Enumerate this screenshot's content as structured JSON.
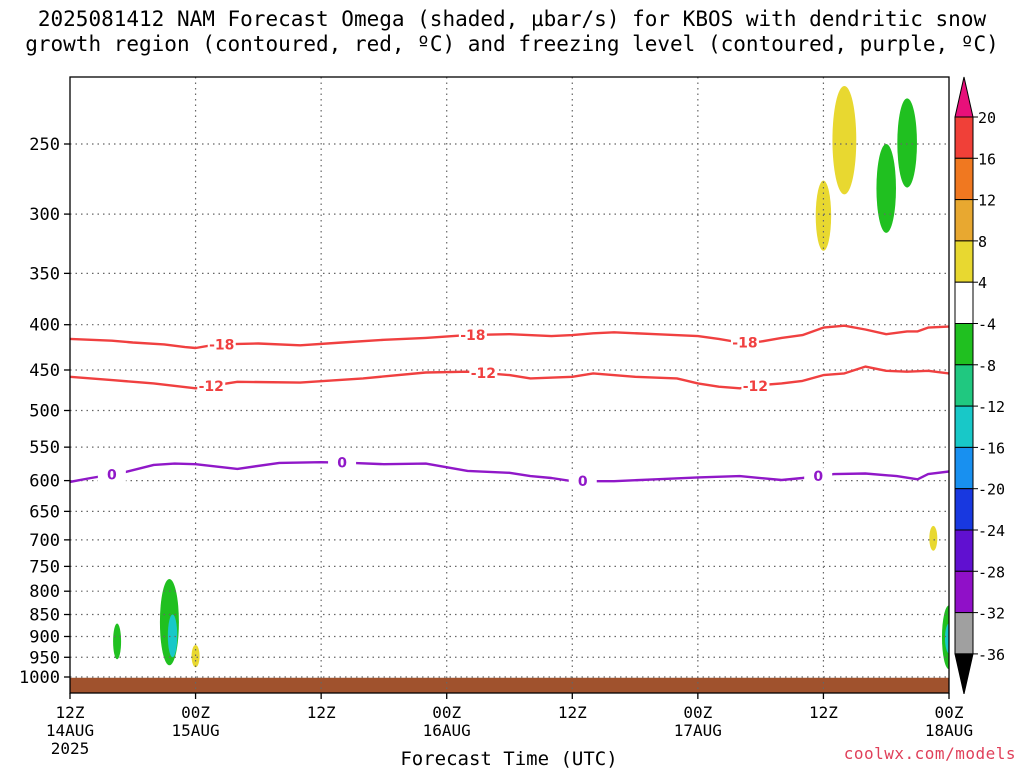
{
  "title": {
    "line1": "2025081412 NAM Forecast Omega (shaded, µbar/s) for KBOS with dendritic snow",
    "line2": "growth region (contoured, red, ºC) and freezing level (contoured, purple, ºC)"
  },
  "credit": "coolwx.com/models",
  "chart_data": {
    "type": "heatmap",
    "title": "2025081412 NAM Forecast Omega (shaded, µbar/s) for KBOS with dendritic snow growth region (contoured, red, ºC) and freezing level (contoured, purple, ºC)",
    "xlabel": "Forecast Time (UTC)",
    "ylabel": "",
    "x_unit": "forecast hour from 2025-08-14 12Z",
    "xlim": [
      0,
      84
    ],
    "ylim": [
      1025,
      200
    ],
    "y_scale": "log-pressure (hPa), inverted",
    "grid": true,
    "x_ticks": [
      {
        "hour": 0,
        "line1": "12Z",
        "line2": "14AUG",
        "line3": "2025"
      },
      {
        "hour": 12,
        "line1": "00Z",
        "line2": "15AUG",
        "line3": ""
      },
      {
        "hour": 24,
        "line1": "12Z",
        "line2": "",
        "line3": ""
      },
      {
        "hour": 36,
        "line1": "00Z",
        "line2": "16AUG",
        "line3": ""
      },
      {
        "hour": 48,
        "line1": "12Z",
        "line2": "",
        "line3": ""
      },
      {
        "hour": 60,
        "line1": "00Z",
        "line2": "17AUG",
        "line3": ""
      },
      {
        "hour": 72,
        "line1": "12Z",
        "line2": "",
        "line3": ""
      },
      {
        "hour": 84,
        "line1": "00Z",
        "line2": "18AUG",
        "line3": ""
      }
    ],
    "y_ticks": [
      250,
      300,
      350,
      400,
      450,
      500,
      550,
      600,
      650,
      700,
      750,
      800,
      850,
      900,
      950,
      1000
    ],
    "colorbar": {
      "labels": [
        "20",
        "16",
        "12",
        "8",
        "4",
        "-4",
        "-8",
        "-12",
        "-16",
        "-20",
        "-24",
        "-28",
        "-32",
        "-36"
      ],
      "colors": [
        "#e8107a",
        "#f04038",
        "#f07820",
        "#e8a830",
        "#e8d830",
        "#ffffff",
        "#20c020",
        "#20c880",
        "#18c8c8",
        "#1890f0",
        "#1838e0",
        "#6010d0",
        "#9010c8",
        "#a0a0a0",
        "#000000"
      ]
    },
    "contours": [
      {
        "name": "-18",
        "color": "#f04040",
        "label": "-18",
        "points": [
          [
            0,
            415
          ],
          [
            4,
            417
          ],
          [
            6,
            419
          ],
          [
            9,
            421
          ],
          [
            11,
            424
          ],
          [
            12,
            425
          ],
          [
            14,
            421
          ],
          [
            18,
            420
          ],
          [
            22,
            422
          ],
          [
            26,
            419
          ],
          [
            30,
            416
          ],
          [
            34,
            414
          ],
          [
            38,
            411
          ],
          [
            42,
            410
          ],
          [
            46,
            412
          ],
          [
            48,
            411
          ],
          [
            50,
            409
          ],
          [
            52,
            408
          ],
          [
            56,
            410
          ],
          [
            60,
            412
          ],
          [
            62,
            415
          ],
          [
            64,
            419
          ],
          [
            66,
            418
          ],
          [
            68,
            414
          ],
          [
            70,
            411
          ],
          [
            72,
            403
          ],
          [
            74,
            401
          ],
          [
            76,
            405
          ],
          [
            78,
            410
          ],
          [
            80,
            407
          ],
          [
            81,
            407
          ],
          [
            82,
            403
          ],
          [
            84,
            402
          ]
        ],
        "label_hours": [
          14.5,
          38.5,
          64.5
        ]
      },
      {
        "name": "-12",
        "color": "#f04040",
        "label": "-12",
        "points": [
          [
            0,
            458
          ],
          [
            4,
            462
          ],
          [
            8,
            466
          ],
          [
            12,
            472
          ],
          [
            16,
            464
          ],
          [
            22,
            465
          ],
          [
            28,
            460
          ],
          [
            34,
            453
          ],
          [
            38,
            452
          ],
          [
            42,
            456
          ],
          [
            44,
            460
          ],
          [
            48,
            458
          ],
          [
            50,
            454
          ],
          [
            54,
            458
          ],
          [
            58,
            460
          ],
          [
            60,
            466
          ],
          [
            62,
            470
          ],
          [
            64,
            472
          ],
          [
            66,
            468
          ],
          [
            68,
            466
          ],
          [
            70,
            463
          ],
          [
            72,
            456
          ],
          [
            74,
            454
          ],
          [
            76,
            446
          ],
          [
            78,
            451
          ],
          [
            80,
            452
          ],
          [
            82,
            451
          ],
          [
            84,
            454
          ]
        ],
        "label_hours": [
          13.5,
          39.5,
          65.5
        ]
      },
      {
        "name": "0",
        "color": "#9018c8",
        "label": "0",
        "points": [
          [
            0,
            602
          ],
          [
            2,
            596
          ],
          [
            5,
            588
          ],
          [
            8,
            576
          ],
          [
            10,
            574
          ],
          [
            12,
            575
          ],
          [
            16,
            582
          ],
          [
            20,
            573
          ],
          [
            24,
            572
          ],
          [
            27,
            573
          ],
          [
            30,
            575
          ],
          [
            34,
            574
          ],
          [
            38,
            585
          ],
          [
            42,
            588
          ],
          [
            44,
            593
          ],
          [
            46,
            596
          ],
          [
            48,
            601
          ],
          [
            52,
            601
          ],
          [
            56,
            598
          ],
          [
            60,
            595
          ],
          [
            64,
            593
          ],
          [
            68,
            599
          ],
          [
            70,
            596
          ],
          [
            73,
            590
          ],
          [
            76,
            589
          ],
          [
            79,
            593
          ],
          [
            81,
            598
          ],
          [
            82,
            590
          ],
          [
            84,
            586
          ]
        ],
        "label_hours": [
          4,
          26,
          49,
          71.5
        ]
      }
    ],
    "omega_blobs": [
      {
        "value": -8,
        "fill": "#20c020",
        "hour": 4.5,
        "p_top": 870,
        "p_bottom": 955
      },
      {
        "value": -8,
        "fill": "#20c020",
        "hour": 9.5,
        "p_top": 775,
        "p_bottom": 970
      },
      {
        "value": -12,
        "fill": "#18c8c8",
        "hour": 9.8,
        "p_top": 850,
        "p_bottom": 950
      },
      {
        "value": 4,
        "fill": "#e8d830",
        "hour": 12,
        "p_top": 920,
        "p_bottom": 975
      },
      {
        "value": 4,
        "fill": "#e8d830",
        "hour": 72,
        "p_top": 275,
        "p_bottom": 330
      },
      {
        "value": 4,
        "fill": "#e8d830",
        "hour": 74,
        "p_top": 215,
        "p_bottom": 285
      },
      {
        "value": -8,
        "fill": "#20c020",
        "hour": 78,
        "p_top": 250,
        "p_bottom": 315
      },
      {
        "value": -8,
        "fill": "#20c020",
        "hour": 80,
        "p_top": 222,
        "p_bottom": 280
      },
      {
        "value": 4,
        "fill": "#e8d830",
        "hour": 82.5,
        "p_top": 675,
        "p_bottom": 720
      },
      {
        "value": -8,
        "fill": "#20c020",
        "hour": 84,
        "p_top": 830,
        "p_bottom": 980
      },
      {
        "value": -12,
        "fill": "#18c8c8",
        "hour": 84,
        "p_top": 870,
        "p_bottom": 940
      }
    ],
    "terrain": {
      "fill": "#a0522d",
      "p_top": 1002
    }
  }
}
